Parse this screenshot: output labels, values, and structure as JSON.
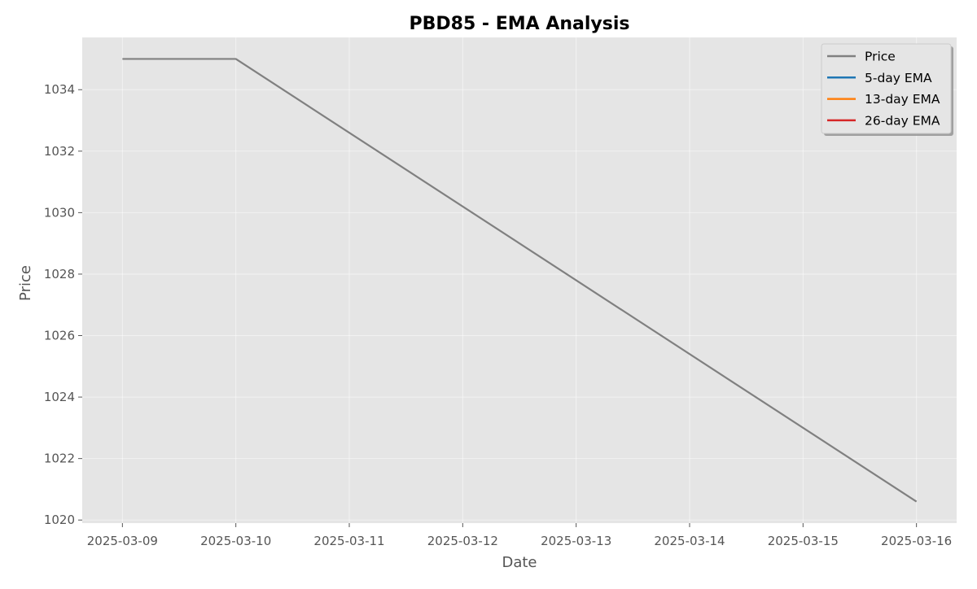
{
  "chart_data": {
    "type": "line",
    "title": "PBD85 - EMA Analysis",
    "xlabel": "Date",
    "ylabel": "Price",
    "x": [
      "2025-03-09",
      "2025-03-10",
      "2025-03-11",
      "2025-03-12",
      "2025-03-13",
      "2025-03-14",
      "2025-03-15",
      "2025-03-16"
    ],
    "xlim": [
      "2025-03-08T15:30",
      "2025-03-16T08:30"
    ],
    "ylim": [
      1019.9,
      1035.7
    ],
    "yticks": [
      1020,
      1022,
      1024,
      1026,
      1028,
      1030,
      1032,
      1034
    ],
    "grid": true,
    "legend_position": "top-right",
    "series": [
      {
        "name": "Price",
        "color": "#808080",
        "points": [
          {
            "x": "2025-03-09",
            "y": 1035.0
          },
          {
            "x": "2025-03-10",
            "y": 1035.0
          },
          {
            "x": "2025-03-16",
            "y": 1020.6
          }
        ]
      },
      {
        "name": "5-day EMA",
        "color": "#1f77b4",
        "points": []
      },
      {
        "name": "13-day EMA",
        "color": "#ff7f0e",
        "points": []
      },
      {
        "name": "26-day EMA",
        "color": "#d62728",
        "points": []
      }
    ]
  }
}
